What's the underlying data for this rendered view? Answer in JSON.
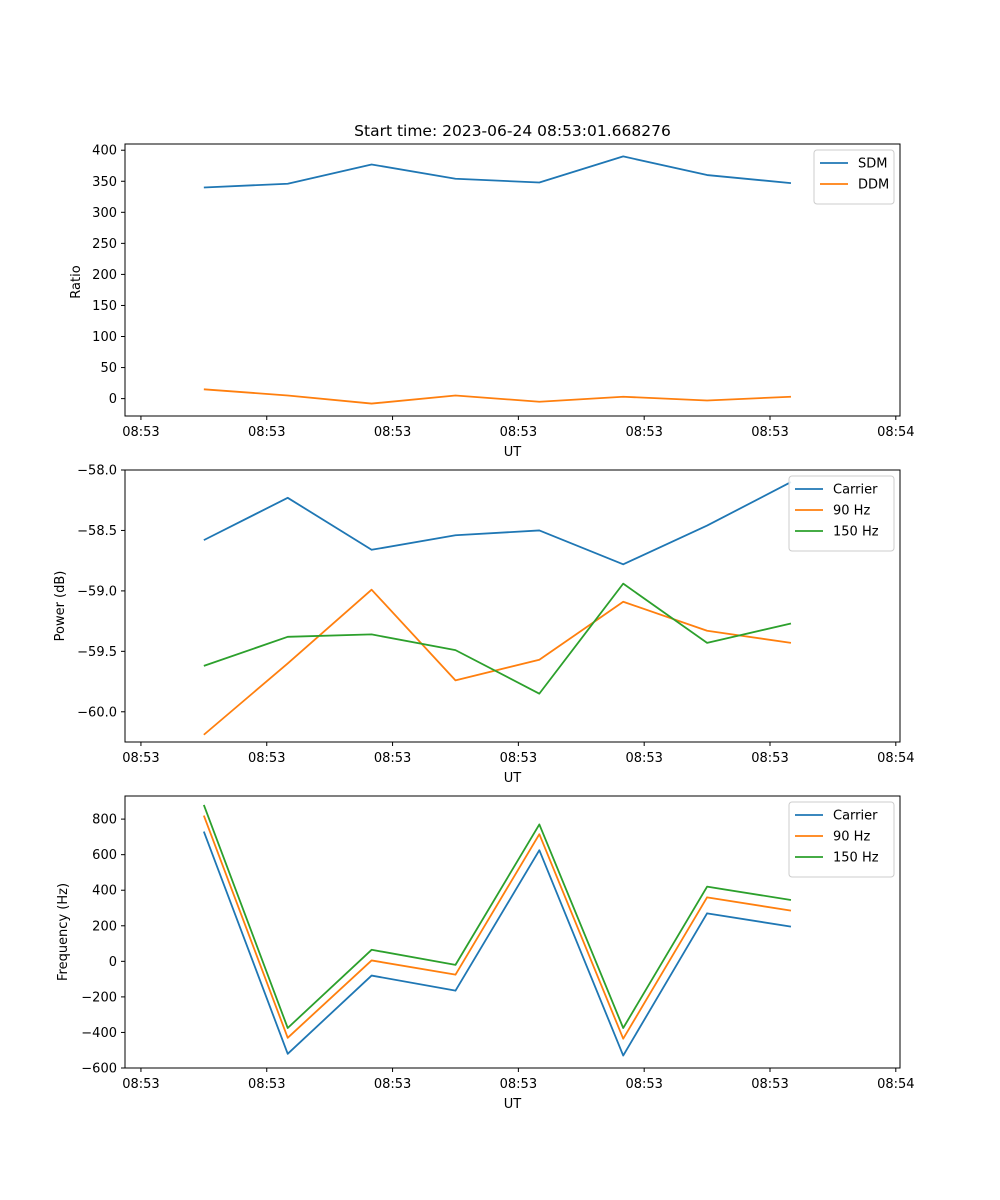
{
  "chart_data": [
    {
      "type": "line",
      "title": "Start time: 2023-06-24 08:53:01.668276",
      "xlabel": "UT",
      "ylabel": "Ratio",
      "ylim": [
        -28,
        410
      ],
      "yticks": [
        0,
        50,
        100,
        150,
        200,
        250,
        300,
        350,
        400
      ],
      "ytick_labels": [
        "0",
        "50",
        "100",
        "150",
        "200",
        "250",
        "300",
        "350",
        "400"
      ],
      "xlim": [
        -0.74,
        8.5
      ],
      "xticks": [
        -0.55,
        0.95,
        2.45,
        3.95,
        5.45,
        6.95,
        8.45
      ],
      "xtick_labels": [
        "08:53",
        "08:53",
        "08:53",
        "08:53",
        "08:53",
        "08:53",
        "08:54"
      ],
      "x": [
        0.2,
        1.2,
        2.2,
        3.2,
        4.2,
        5.2,
        6.2,
        7.2
      ],
      "series": [
        {
          "name": "SDM",
          "color": "#1f77b4",
          "values": [
            340,
            346,
            377,
            354,
            348,
            390,
            360,
            347
          ]
        },
        {
          "name": "DDM",
          "color": "#ff7f0e",
          "values": [
            15,
            5,
            -8,
            5,
            -5,
            3,
            -3,
            3
          ]
        }
      ],
      "legend": "top-right"
    },
    {
      "type": "line",
      "title": "",
      "xlabel": "UT",
      "ylabel": "Power (dB)",
      "ylim": [
        -60.25,
        -58.0
      ],
      "yticks": [
        -60.0,
        -59.5,
        -59.0,
        -58.5,
        -58.0
      ],
      "ytick_labels": [
        "−60.0",
        "−59.5",
        "−59.0",
        "−58.5",
        "−58.0"
      ],
      "xlim": [
        -0.74,
        8.5
      ],
      "xticks": [
        -0.55,
        0.95,
        2.45,
        3.95,
        5.45,
        6.95,
        8.45
      ],
      "xtick_labels": [
        "08:53",
        "08:53",
        "08:53",
        "08:53",
        "08:53",
        "08:53",
        "08:54"
      ],
      "x": [
        0.2,
        1.2,
        2.2,
        3.2,
        4.2,
        5.2,
        6.2,
        7.2
      ],
      "series": [
        {
          "name": "Carrier",
          "color": "#1f77b4",
          "values": [
            -58.58,
            -58.23,
            -58.66,
            -58.54,
            -58.5,
            -58.78,
            -58.46,
            -58.1
          ]
        },
        {
          "name": "90 Hz",
          "color": "#ff7f0e",
          "values": [
            -60.19,
            -59.6,
            -58.99,
            -59.74,
            -59.57,
            -59.09,
            -59.33,
            -59.43
          ]
        },
        {
          "name": "150 Hz",
          "color": "#2ca02c",
          "values": [
            -59.62,
            -59.38,
            -59.36,
            -59.49,
            -59.85,
            -58.94,
            -59.43,
            -59.27
          ]
        }
      ],
      "legend": "top-right"
    },
    {
      "type": "line",
      "title": "",
      "xlabel": "UT",
      "ylabel": "Frequency (Hz)",
      "ylim": [
        -600,
        930
      ],
      "yticks": [
        -600,
        -400,
        -200,
        0,
        200,
        400,
        600,
        800
      ],
      "ytick_labels": [
        "−600",
        "−400",
        "−200",
        "0",
        "200",
        "400",
        "600",
        "800"
      ],
      "xlim": [
        -0.74,
        8.5
      ],
      "xticks": [
        -0.55,
        0.95,
        2.45,
        3.95,
        5.45,
        6.95,
        8.45
      ],
      "xtick_labels": [
        "08:53",
        "08:53",
        "08:53",
        "08:53",
        "08:53",
        "08:53",
        "08:54"
      ],
      "x": [
        0.2,
        1.2,
        2.2,
        3.2,
        4.2,
        5.2,
        6.2,
        7.2
      ],
      "series": [
        {
          "name": "Carrier",
          "color": "#1f77b4",
          "values": [
            730,
            -520,
            -80,
            -165,
            625,
            -530,
            270,
            195
          ]
        },
        {
          "name": "90 Hz",
          "color": "#ff7f0e",
          "values": [
            820,
            -430,
            5,
            -75,
            715,
            -435,
            360,
            285
          ]
        },
        {
          "name": "150 Hz",
          "color": "#2ca02c",
          "values": [
            880,
            -375,
            65,
            -20,
            770,
            -375,
            420,
            345
          ]
        }
      ],
      "legend": "top-right"
    }
  ]
}
